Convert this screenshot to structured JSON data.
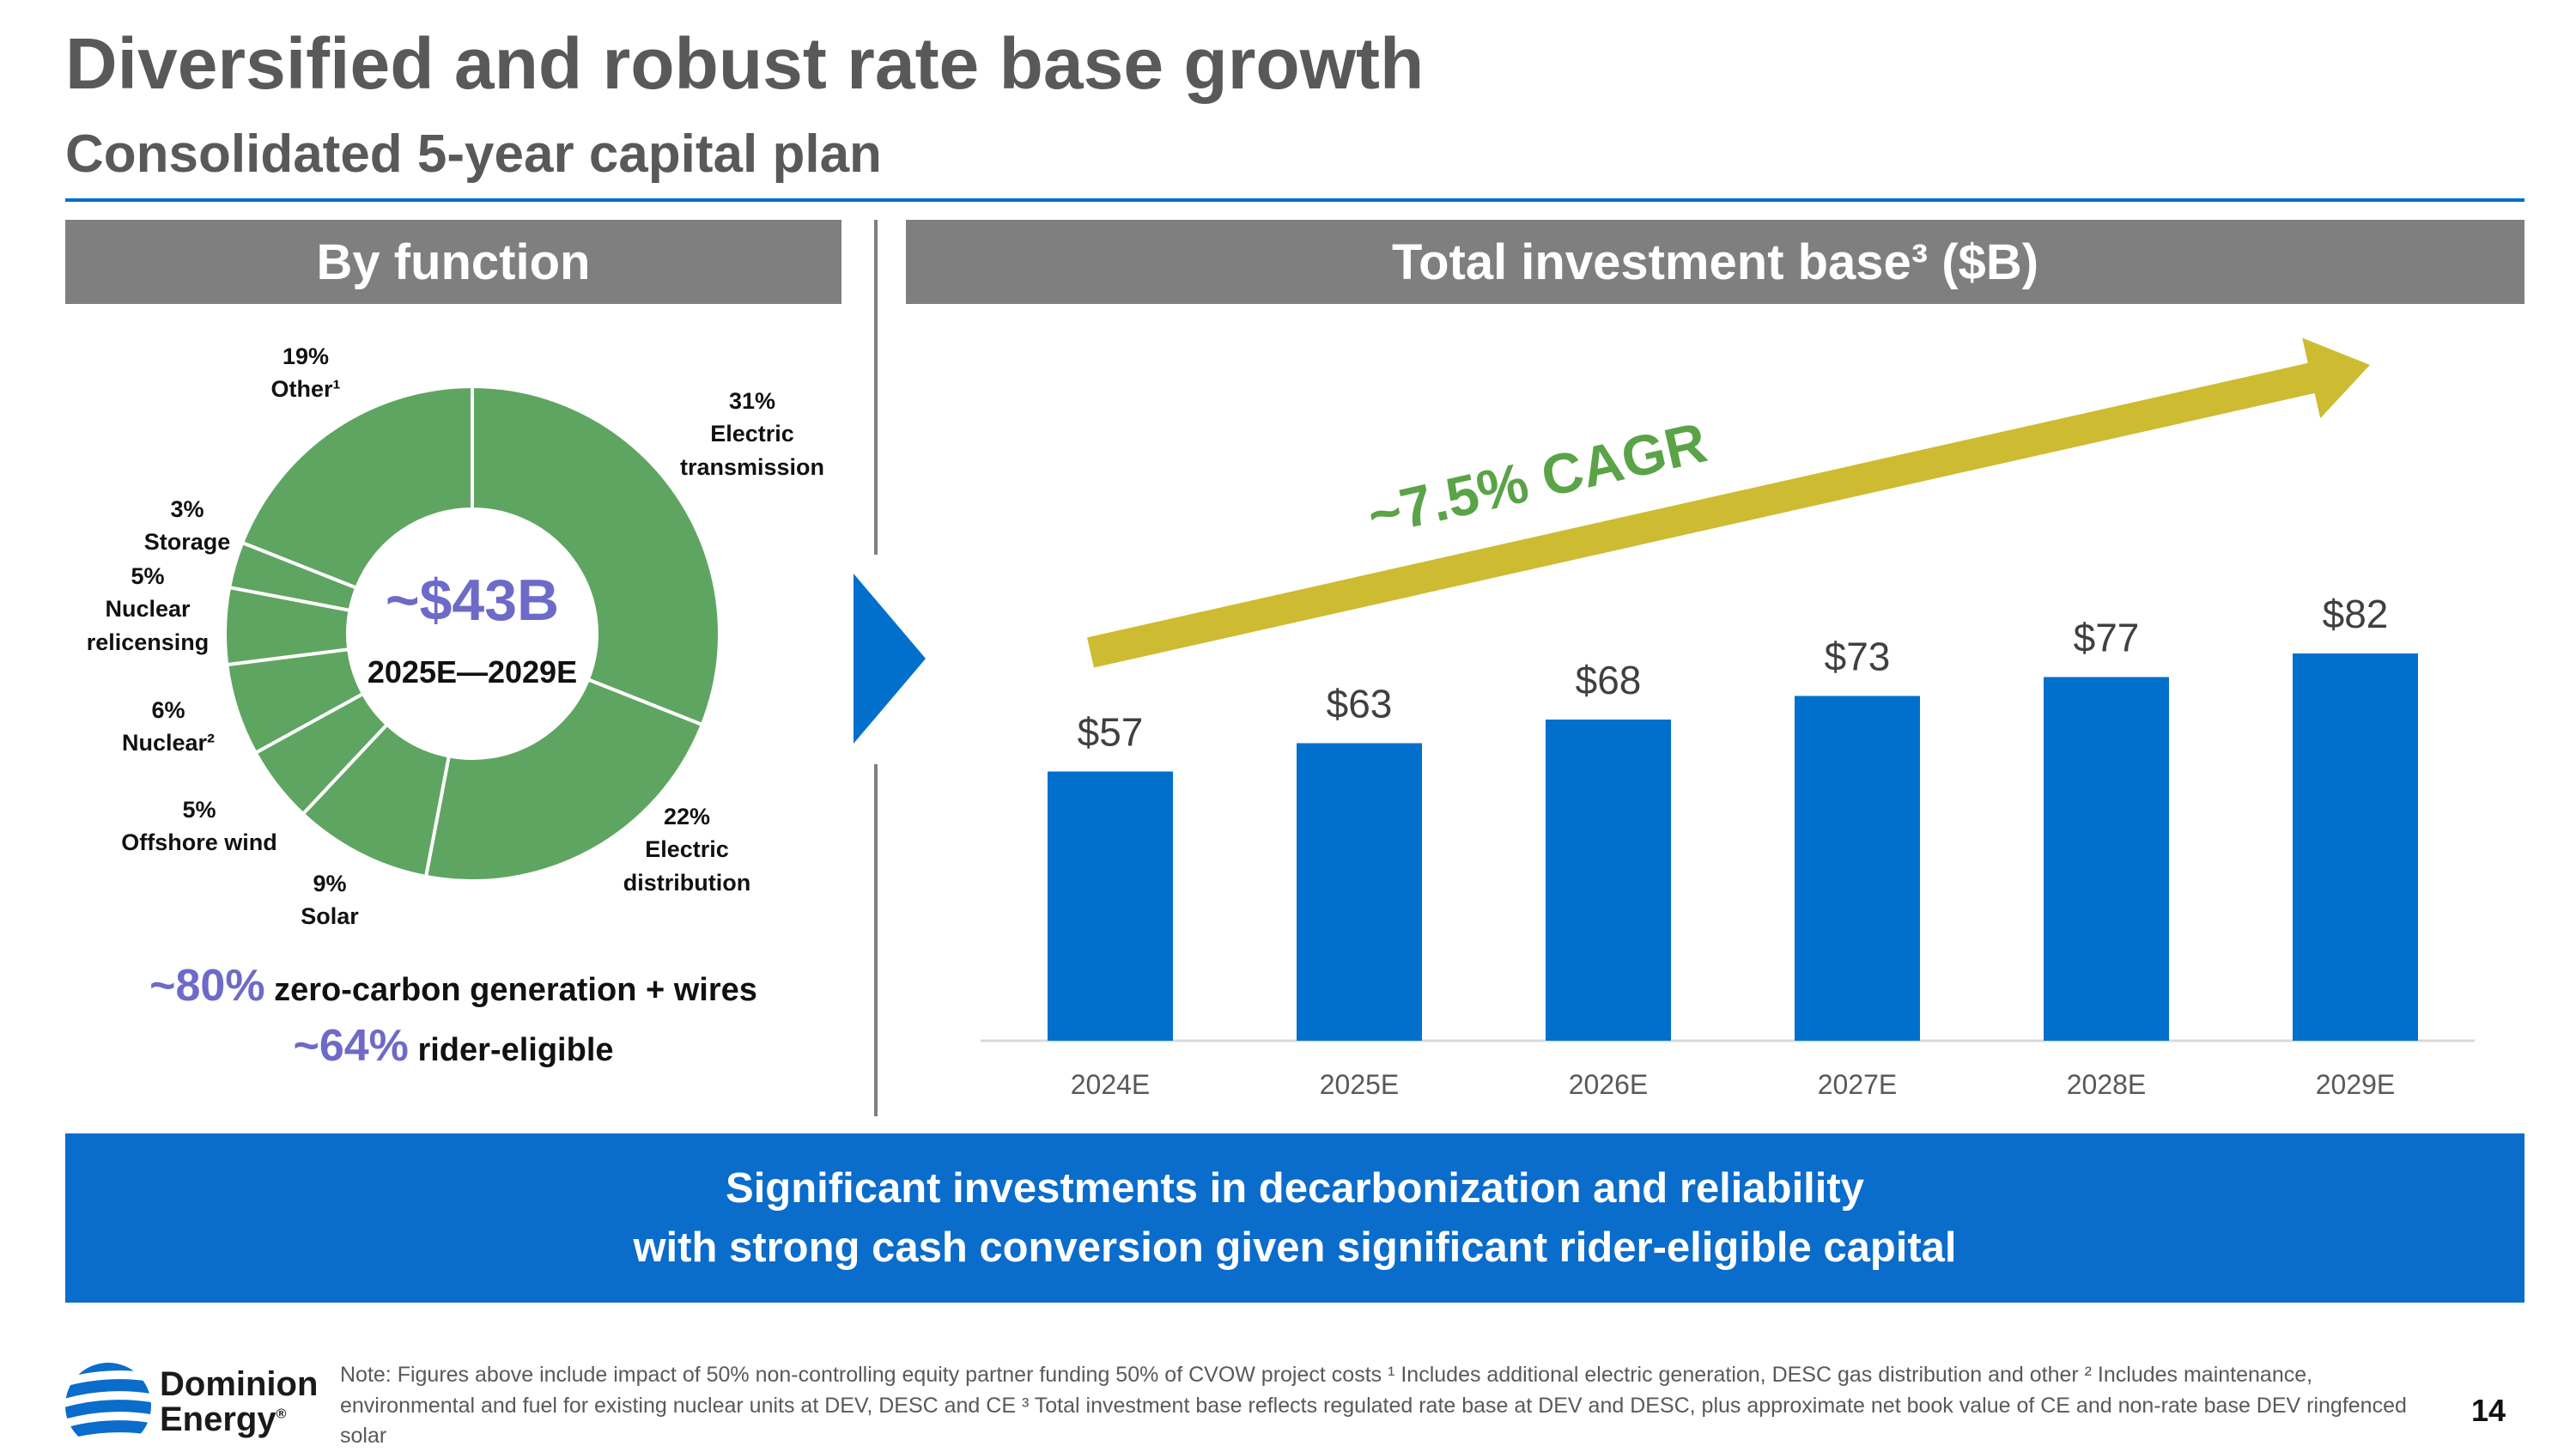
{
  "header": {
    "title": "Diversified and robust rate base growth",
    "subtitle": "Consolidated 5-year capital plan"
  },
  "left_panel": {
    "heading": "By function",
    "center_amount": "~$43B",
    "center_years": "2025E—2029E",
    "stat1_big": "~80%",
    "stat1_text": " zero-carbon generation + wires",
    "stat2_big": "~64%",
    "stat2_text": " rider-eligible"
  },
  "right_panel": {
    "heading": "Total investment base³ ($B)",
    "cagr_label": "~7.5% CAGR"
  },
  "banner": {
    "line1": "Significant investments in decarbonization and reliability",
    "line2": "with strong cash conversion given significant rider-eligible capital"
  },
  "footer": {
    "logo_line1": "Dominion",
    "logo_line2": "Energy",
    "logo_mark": "®",
    "note": "Note: Figures above include impact of 50% non-controlling equity partner funding 50% of CVOW project costs ¹ Includes additional electric generation, DESC gas distribution and other ² Includes maintenance, environmental and fuel for existing nuclear units at DEV, DESC and CE ³ Total investment base reflects regulated rate base at DEV and DESC, plus approximate net book value of CE and non-rate base DEV ringfenced solar",
    "page_number": "14"
  },
  "colors": {
    "accent": "#0070cc",
    "bar": "#0070cc",
    "donut": "#5fa562",
    "arrow": "#cdbb32",
    "highlight_text": "#6e6ac8",
    "cagr_text": "#5aa347",
    "header_gray": "#7f7f7f"
  },
  "chart_data": [
    {
      "type": "pie",
      "title": "By function",
      "center_label": "~$43B",
      "center_sublabel": "2025E—2029E",
      "slices": [
        {
          "name": "Electric transmission",
          "value": 31,
          "label_lines": [
            "31%",
            "Electric",
            "transmission"
          ]
        },
        {
          "name": "Electric distribution",
          "value": 22,
          "label_lines": [
            "22%",
            "Electric",
            "distribution"
          ]
        },
        {
          "name": "Solar",
          "value": 9,
          "label_lines": [
            "9%",
            "Solar"
          ]
        },
        {
          "name": "Offshore wind",
          "value": 5,
          "label_lines": [
            "5%",
            "Offshore wind"
          ]
        },
        {
          "name": "Nuclear²",
          "value": 6,
          "label_lines": [
            "6%",
            "Nuclear²"
          ]
        },
        {
          "name": "Nuclear relicensing",
          "value": 5,
          "label_lines": [
            "5%",
            "Nuclear",
            "relicensing"
          ]
        },
        {
          "name": "Storage",
          "value": 3,
          "label_lines": [
            "3%",
            "Storage"
          ]
        },
        {
          "name": "Other¹",
          "value": 19,
          "label_lines": [
            "19%",
            "Other¹"
          ]
        }
      ]
    },
    {
      "type": "bar",
      "title": "Total investment base³ ($B)",
      "categories": [
        "2024E",
        "2025E",
        "2026E",
        "2027E",
        "2028E",
        "2029E"
      ],
      "values": [
        57,
        63,
        68,
        73,
        77,
        82
      ],
      "data_labels": [
        "$57",
        "$63",
        "$68",
        "$73",
        "$77",
        "$82"
      ],
      "ylim": [
        0,
        100
      ],
      "grid": false,
      "annotation": "~7.5% CAGR"
    }
  ]
}
